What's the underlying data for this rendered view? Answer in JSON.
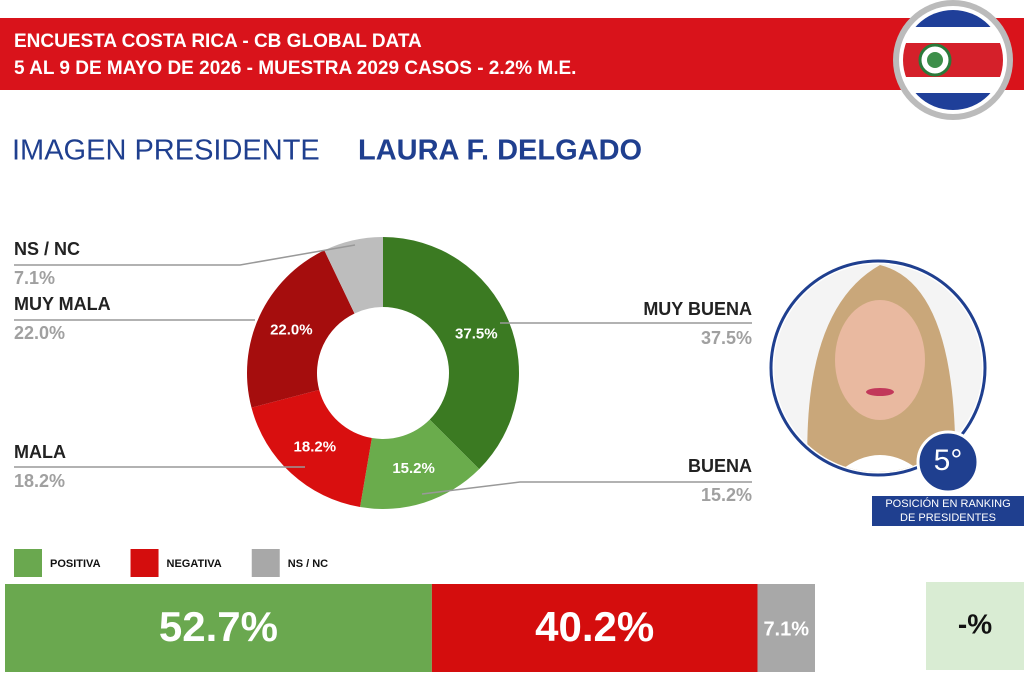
{
  "header": {
    "line1": "ENCUESTA COSTA RICA - CB GLOBAL DATA",
    "line2": "5 AL 9 DE MAYO DE 2026 - MUESTRA 2029 CASOS - 2.2% M.E."
  },
  "heading": {
    "label": "IMAGEN PRESIDENTE",
    "name": "LAURA F. DELGADO"
  },
  "chart_data": [
    {
      "type": "pie",
      "donut": true,
      "categories": [
        "MUY BUENA",
        "BUENA",
        "MALA",
        "MUY MALA",
        "NS / NC"
      ],
      "values": [
        37.5,
        15.2,
        18.2,
        22.0,
        7.1
      ],
      "value_labels": [
        "37.5%",
        "15.2%",
        "18.2%",
        "22.0%",
        "7.1%"
      ],
      "colors": [
        "#3b7a22",
        "#6aac4c",
        "#d90f0f",
        "#a50d0d",
        "#bdbdbd"
      ]
    },
    {
      "type": "bar",
      "stacked": true,
      "orientation": "horizontal",
      "series": [
        {
          "name": "POSITIVA",
          "color": "#6aa84f",
          "values": [
            52.7
          ],
          "value_labels": [
            "52.7%"
          ]
        },
        {
          "name": "NEGATIVA",
          "color": "#d40d0d",
          "values": [
            40.2
          ],
          "value_labels": [
            "40.2%"
          ]
        },
        {
          "name": "NS / NC",
          "color": "#a8a8a8",
          "values": [
            7.1
          ],
          "value_labels": [
            "7.1%"
          ]
        }
      ]
    }
  ],
  "ranking": {
    "position": "5°",
    "caption_line1": "POSICIÓN EN RANKING",
    "caption_line2": "DE PRESIDENTES"
  },
  "change": "-%"
}
